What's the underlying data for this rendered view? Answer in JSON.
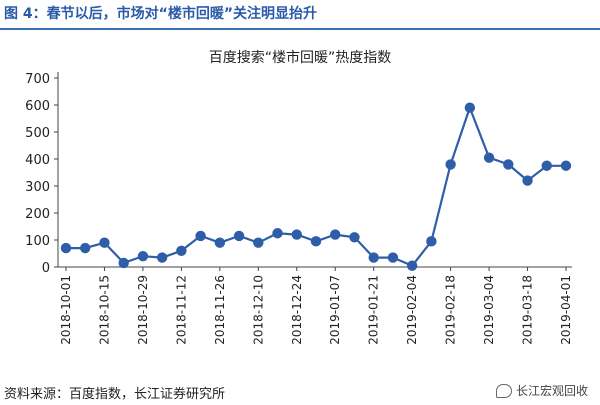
{
  "figure_title": "图 4：春节以后，市场对“楼市回暖”关注明显抬升",
  "source": "资料来源：百度指数，长江证券研究所",
  "watermark": "长江宏观回收",
  "colors": {
    "line": "#2f5ea8",
    "marker": "#2f5ea8",
    "title": "#2a5aa8",
    "axis": "#444444"
  },
  "chart_data": {
    "type": "line",
    "title": "百度搜索“楼市回暖”热度指数",
    "xlabel": "",
    "ylabel": "",
    "ylim": [
      0,
      700
    ],
    "yticks": [
      0,
      100,
      200,
      300,
      400,
      500,
      600,
      700
    ],
    "grid": false,
    "legend": "none",
    "x": [
      "2018-10-01",
      "2018-10-08",
      "2018-10-15",
      "2018-10-22",
      "2018-10-29",
      "2018-11-05",
      "2018-11-12",
      "2018-11-19",
      "2018-11-26",
      "2018-12-03",
      "2018-12-10",
      "2018-12-17",
      "2018-12-24",
      "2018-12-31",
      "2019-01-07",
      "2019-01-14",
      "2019-01-21",
      "2019-01-28",
      "2019-02-04",
      "2019-02-11",
      "2019-02-18",
      "2019-02-25",
      "2019-03-04",
      "2019-03-11",
      "2019-03-18",
      "2019-03-25",
      "2019-04-01"
    ],
    "xtick_labels": [
      "2018-10-01",
      "2018-10-15",
      "2018-10-29",
      "2018-11-12",
      "2018-11-26",
      "2018-12-10",
      "2018-12-24",
      "2019-01-07",
      "2019-01-21",
      "2019-02-04",
      "2019-02-18",
      "2019-03-04",
      "2019-03-18",
      "2019-04-01"
    ],
    "series": [
      {
        "values": [
          70,
          70,
          90,
          15,
          40,
          35,
          60,
          115,
          90,
          115,
          90,
          125,
          120,
          95,
          120,
          110,
          35,
          35,
          5,
          95,
          380,
          590,
          405,
          380,
          320,
          375,
          375
        ]
      }
    ]
  }
}
